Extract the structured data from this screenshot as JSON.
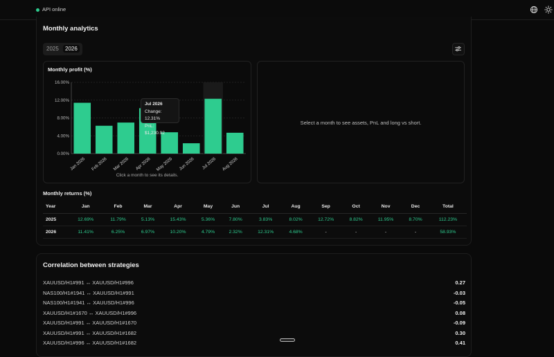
{
  "status": {
    "api_label": "API online"
  },
  "analytics": {
    "title": "Monthly analytics",
    "years": [
      "2025",
      "2026"
    ],
    "selected_year": "2026",
    "chart_panel_title": "Monthly profit (%)",
    "tooltip": {
      "month": "Jul 2026",
      "change": "Change: 12.31%",
      "pnl": "PnL: $1,230.92"
    },
    "chart_hint": "Click a month to see its details.",
    "detail_placeholder": "Select a month to see assets, PnL and long vs short."
  },
  "chart_data": {
    "type": "bar",
    "title": "Monthly profit (%)",
    "categories": [
      "Jan 2026",
      "Feb 2026",
      "Mar 2026",
      "Apr 2026",
      "May 2026",
      "Jun 2026",
      "Jul 2026",
      "Aug 2026"
    ],
    "values": [
      11.41,
      6.25,
      6.97,
      10.2,
      4.79,
      2.32,
      12.31,
      4.68
    ],
    "yticks": [
      "0.00%",
      "4.00%",
      "8.00%",
      "12.00%",
      "16.00%"
    ],
    "ylim": [
      0,
      16
    ],
    "highlighted": "Jul 2026",
    "bar_color": "#2ecc8f"
  },
  "returns": {
    "title": "Monthly returns (%)",
    "headers": [
      "Year",
      "Jan",
      "Feb",
      "Mar",
      "Apr",
      "May",
      "Jun",
      "Jul",
      "Aug",
      "Sep",
      "Oct",
      "Nov",
      "Dec",
      "Total"
    ],
    "rows": [
      [
        "2025",
        "12.69%",
        "11.79%",
        "5.13%",
        "15.43%",
        "5.36%",
        "7.80%",
        "3.83%",
        "8.02%",
        "12.72%",
        "8.82%",
        "11.95%",
        "8.70%",
        "112.23%"
      ],
      [
        "2026",
        "11.41%",
        "6.25%",
        "6.97%",
        "10.20%",
        "4.79%",
        "2.32%",
        "12.31%",
        "4.68%",
        "-",
        "-",
        "-",
        "-",
        "58.93%"
      ]
    ]
  },
  "correlation": {
    "title": "Correlation between strategies",
    "rows": [
      {
        "pair": "XAUUSD/H1#991 ↔ XAUUSD/H1#996",
        "value": "0.27"
      },
      {
        "pair": "NAS100/H1#1941 ↔ XAUUSD/H1#991",
        "value": "-0.03"
      },
      {
        "pair": "NAS100/H1#1941 ↔ XAUUSD/H1#996",
        "value": "-0.05"
      },
      {
        "pair": "XAUUSD/H1#1670 ↔ XAUUSD/H1#996",
        "value": "0.08"
      },
      {
        "pair": "XAUUSD/H1#991 ↔ XAUUSD/H1#1670",
        "value": "-0.09"
      },
      {
        "pair": "XAUUSD/H1#991 ↔ XAUUSD/H1#1682",
        "value": "0.30"
      },
      {
        "pair": "XAUUSD/H1#996 ↔ XAUUSD/H1#1682",
        "value": "0.41"
      }
    ]
  }
}
